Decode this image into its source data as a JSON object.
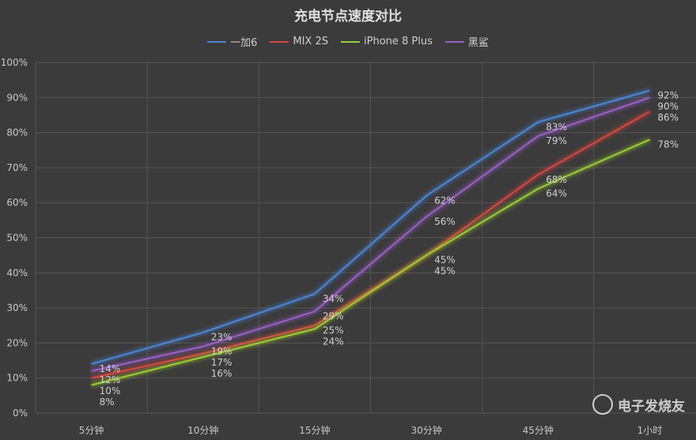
{
  "chart_data": {
    "type": "line",
    "title": "充电节点速度对比",
    "categories": [
      "5分钟",
      "10分钟",
      "15分钟",
      "30分钟",
      "45分钟",
      "1小时"
    ],
    "ylim": [
      0,
      100
    ],
    "yticks": [
      "0%",
      "10%",
      "20%",
      "30%",
      "40%",
      "50%",
      "60%",
      "70%",
      "80%",
      "90%",
      "100%"
    ],
    "legend_position": "top",
    "series": [
      {
        "name": "一加6",
        "color": "#4a86d8",
        "values": [
          14,
          23,
          34,
          62,
          83,
          92
        ]
      },
      {
        "name": "MIX 2S",
        "color": "#d9463e",
        "values": [
          10,
          17,
          25,
          45,
          68,
          86
        ]
      },
      {
        "name": "iPhone 8 Plus",
        "color": "#9acd32",
        "values": [
          8,
          16,
          24,
          45,
          64,
          78
        ]
      },
      {
        "name": "黑鲨",
        "color": "#9a5fc9",
        "values": [
          12,
          19,
          29,
          56,
          79,
          90
        ]
      }
    ]
  },
  "watermark": "电子发烧友"
}
